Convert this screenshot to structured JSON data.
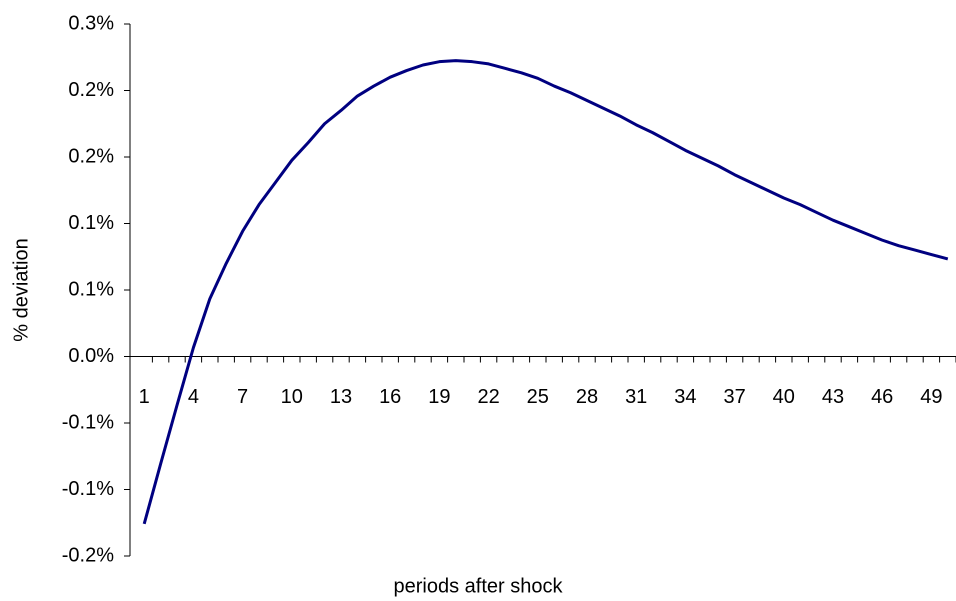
{
  "chart_data": {
    "type": "line",
    "x_label": "periods after shock",
    "y_label": "% deviation",
    "categories": [
      1,
      null,
      null,
      4,
      null,
      null,
      7,
      null,
      null,
      10,
      null,
      null,
      13,
      null,
      null,
      16,
      null,
      null,
      19,
      null,
      null,
      22,
      null,
      null,
      25,
      null,
      null,
      28,
      null,
      null,
      31,
      null,
      null,
      34,
      null,
      null,
      37,
      null,
      null,
      40,
      null,
      null,
      43,
      null,
      null,
      46,
      null,
      null,
      49,
      null
    ],
    "series": [
      {
        "color": "#000080",
        "values": [
          -0.151,
          -0.097,
          -0.044,
          0.008,
          0.052,
          0.084,
          0.113,
          0.137,
          0.157,
          0.177,
          0.193,
          0.21,
          0.222,
          0.235,
          0.244,
          0.252,
          0.258,
          0.263,
          0.266,
          0.267,
          0.266,
          0.264,
          0.26,
          0.256,
          0.251,
          0.244,
          0.238,
          0.231,
          0.224,
          0.217,
          0.209,
          0.202,
          0.194,
          0.186,
          0.179,
          0.172,
          0.164,
          0.157,
          0.15,
          0.143,
          0.137,
          0.13,
          0.123,
          0.117,
          0.111,
          0.105,
          0.1,
          0.096,
          0.092,
          0.088
        ]
      }
    ],
    "ylim": [
      -0.18,
      0.3
    ],
    "yticks": [
      {
        "value": -0.18,
        "label": "-0.2%"
      },
      {
        "value": -0.12,
        "label": "-0.1%"
      },
      {
        "value": -0.06,
        "label": "-0.1%"
      },
      {
        "value": 0,
        "label": "0.0%"
      },
      {
        "value": 0.06,
        "label": "0.1%"
      },
      {
        "value": 0.12,
        "label": "0.1%"
      },
      {
        "value": 0.18,
        "label": "0.2%"
      },
      {
        "value": 0.24,
        "label": "0.2%"
      },
      {
        "value": 0.3,
        "label": "0.3%"
      }
    ],
    "grid": false
  }
}
